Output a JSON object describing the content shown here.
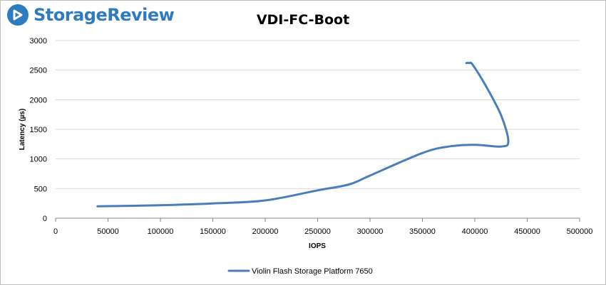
{
  "brand": {
    "name": "StorageReview",
    "icon": "storagereview-logo-icon",
    "color": "#2e7bbf"
  },
  "chart_data": {
    "type": "line",
    "title": "VDI-FC-Boot",
    "xlabel": "IOPS",
    "ylabel": "Latency (µs)",
    "xlim": [
      0,
      500000
    ],
    "ylim": [
      0,
      3000
    ],
    "xticks": [
      0,
      50000,
      100000,
      150000,
      200000,
      250000,
      300000,
      350000,
      400000,
      450000,
      500000
    ],
    "yticks": [
      0,
      500,
      1000,
      1500,
      2000,
      2500,
      3000
    ],
    "grid": "horizontal",
    "legend_position": "bottom",
    "series": [
      {
        "name": "Violin Flash Storage Platform 7650",
        "color": "#4a7ebb",
        "x": [
          40000,
          100000,
          150000,
          200000,
          250000,
          280000,
          300000,
          350000,
          375000,
          400000,
          425000,
          432000,
          425000,
          410000,
          398000,
          395000,
          392000
        ],
        "y": [
          200,
          220,
          250,
          300,
          470,
          570,
          720,
          1100,
          1210,
          1240,
          1210,
          1300,
          1740,
          2250,
          2590,
          2620,
          2620
        ]
      }
    ]
  }
}
